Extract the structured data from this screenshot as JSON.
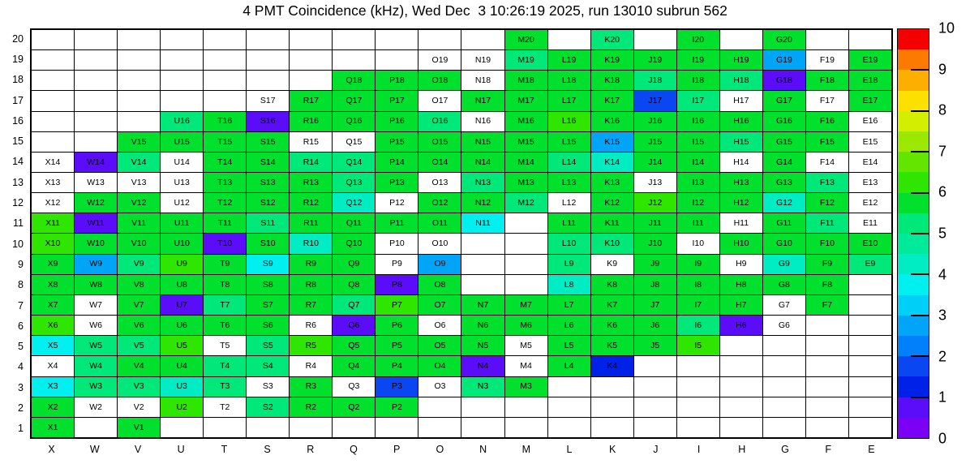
{
  "title": "4 PMT Coincidence (kHz), Wed Dec  3 10:26:19 2025, run 13010 subrun 562",
  "chart_data": {
    "type": "heatmap",
    "title": "4 PMT Coincidence (kHz), Wed Dec  3 10:26:19 2025, run 13010 subrun 562",
    "unit": "kHz",
    "x_columns": [
      "X",
      "W",
      "V",
      "U",
      "T",
      "S",
      "R",
      "Q",
      "P",
      "O",
      "N",
      "M",
      "L",
      "K",
      "J",
      "I",
      "H",
      "G",
      "F",
      "E"
    ],
    "y_rows": [
      "20",
      "19",
      "18",
      "17",
      "16",
      "15",
      "14",
      "13",
      "12",
      "11",
      "10",
      "9",
      "8",
      "7",
      "6",
      "5",
      "4",
      "3",
      "2",
      "1"
    ],
    "palette": {
      "w": "#ffffff",
      "g": "#00e02c",
      "lg": "#2ee600",
      "sg": "#00e87a",
      "tq": "#00edc4",
      "cy": "#00f0f0",
      "lb": "#00a5f7",
      "bl": "#0a46f2",
      "db": "#0022e8",
      "pu": "#5b0cf8"
    },
    "palette_value_estimates_khz": {
      "w": null,
      "pu": 0.75,
      "db": 1.25,
      "bl": 1.75,
      "lb": 2.75,
      "cy": 3.75,
      "tq": 4.25,
      "sg": 5.0,
      "g": 5.75,
      "lg": 6.25
    },
    "cells": [
      [
        "",
        "",
        "",
        "",
        "",
        "",
        "",
        "",
        "",
        "",
        "",
        "M20:g",
        "",
        "K20:sg",
        "",
        "I20:g",
        "",
        "G20:g",
        "",
        ""
      ],
      [
        "",
        "",
        "",
        "",
        "",
        "",
        "",
        "",
        "",
        "O19:w",
        "N19:w",
        "M19:sg",
        "L19:g",
        "K19:g",
        "J19:g",
        "I19:g",
        "H19:g",
        "G19:lb",
        "F19:w",
        "E19:g"
      ],
      [
        "",
        "",
        "",
        "",
        "",
        "",
        "",
        "Q18:g",
        "P18:g",
        "O18:g",
        "N18:w",
        "M18:g",
        "L18:g",
        "K18:g",
        "J18:sg",
        "I18:g",
        "H18:sg",
        "G18:pu",
        "F18:g",
        "E18:g"
      ],
      [
        "",
        "",
        "",
        "",
        "",
        "S17:w",
        "R17:g",
        "Q17:g",
        "P17:g",
        "O17:w",
        "N17:g",
        "M17:g",
        "L17:g",
        "K17:g",
        "J17:bl",
        "I17:sg",
        "H17:w",
        "G17:g",
        "F17:w",
        "E17:g"
      ],
      [
        "",
        "",
        "",
        "U16:sg",
        "T16:g",
        "S16:pu",
        "R16:g",
        "Q16:g",
        "P16:g",
        "O16:sg",
        "N16:w",
        "M16:g",
        "L16:lg",
        "K16:g",
        "J16:g",
        "I16:g",
        "H16:g",
        "G16:g",
        "F16:g",
        "E16:w"
      ],
      [
        "",
        "",
        "V15:g",
        "U15:g",
        "T15:g",
        "S15:g",
        "R15:w",
        "Q15:w",
        "P15:g",
        "O15:g",
        "N15:g",
        "M15:g",
        "L15:g",
        "K15:lb",
        "J15:g",
        "I15:g",
        "H15:sg",
        "G15:g",
        "F15:g",
        "E15:w"
      ],
      [
        "X14:w",
        "W14:pu",
        "V14:sg",
        "U14:w",
        "T14:g",
        "S14:g",
        "R14:sg",
        "Q14:sg",
        "P14:g",
        "O14:g",
        "N14:g",
        "M14:g",
        "L14:sg",
        "K14:tq",
        "J14:g",
        "I14:g",
        "H14:w",
        "G14:g",
        "F14:w",
        "E14:w"
      ],
      [
        "X13:w",
        "W13:w",
        "V13:w",
        "U13:w",
        "T13:g",
        "S13:g",
        "R13:g",
        "Q13:sg",
        "P13:g",
        "O13:w",
        "N13:sg",
        "M13:g",
        "L13:g",
        "K13:g",
        "J13:w",
        "I13:g",
        "H13:g",
        "G13:g",
        "F13:sg",
        "E13:w"
      ],
      [
        "X12:w",
        "W12:g",
        "V12:g",
        "U12:w",
        "T12:g",
        "S12:g",
        "R12:g",
        "Q12:tq",
        "P12:w",
        "O12:g",
        "N12:g",
        "M12:sg",
        "L12:w",
        "K12:g",
        "J12:lg",
        "I12:g",
        "H12:g",
        "G12:tq",
        "F12:g",
        "E12:w"
      ],
      [
        "X11:lg",
        "W11:pu",
        "V11:g",
        "U11:g",
        "T11:g",
        "S11:sg",
        "R11:g",
        "Q11:g",
        "P11:g",
        "O11:g",
        "N11:cy",
        "",
        "L11:g",
        "K11:g",
        "J11:g",
        "I11:g",
        "H11:w",
        "G11:g",
        "F11:sg",
        "E11:w"
      ],
      [
        "X10:lg",
        "W10:g",
        "V10:g",
        "U10:g",
        "T10:pu",
        "S10:g",
        "R10:tq",
        "Q10:g",
        "P10:w",
        "O10:w",
        "",
        "",
        "L10:sg",
        "K10:sg",
        "J10:g",
        "I10:w",
        "H10:g",
        "G10:g",
        "F10:g",
        "E10:g"
      ],
      [
        "X9:g",
        "W9:lb",
        "V9:sg",
        "U9:lg",
        "T9:g",
        "S9:cy",
        "R9:g",
        "Q9:g",
        "P9:w",
        "O9:lb",
        "",
        "",
        "L9:sg",
        "K9:w",
        "J9:g",
        "I9:g",
        "H9:w",
        "G9:tq",
        "F9:g",
        "E9:sg"
      ],
      [
        "X8:g",
        "W8:g",
        "V8:g",
        "U8:g",
        "T8:g",
        "S8:g",
        "R8:g",
        "Q8:g",
        "P8:pu",
        "O8:g",
        "",
        "",
        "L8:tq",
        "K8:g",
        "J8:g",
        "I8:g",
        "H8:g",
        "G8:g",
        "F8:g",
        ""
      ],
      [
        "X7:g",
        "W7:w",
        "V7:g",
        "U7:pu",
        "T7:sg",
        "S7:g",
        "R7:g",
        "Q7:sg",
        "P7:lg",
        "O7:g",
        "N7:g",
        "M7:g",
        "L7:g",
        "K7:g",
        "J7:g",
        "I7:g",
        "H7:g",
        "G7:w",
        "F7:g",
        ""
      ],
      [
        "X6:lg",
        "W6:w",
        "V6:g",
        "U6:g",
        "T6:g",
        "S6:g",
        "R6:w",
        "Q6:pu",
        "P6:g",
        "O6:w",
        "N6:g",
        "M6:g",
        "L6:g",
        "K6:g",
        "J6:g",
        "I6:sg",
        "H6:pu",
        "G6:w",
        "",
        ""
      ],
      [
        "X5:cy",
        "W5:sg",
        "V5:sg",
        "U5:lg",
        "T5:w",
        "S5:sg",
        "R5:lg",
        "Q5:g",
        "P5:g",
        "O5:g",
        "N5:g",
        "M5:w",
        "L5:g",
        "K5:g",
        "J5:g",
        "I5:lg",
        "",
        "",
        "",
        ""
      ],
      [
        "X4:w",
        "W4:sg",
        "V4:g",
        "U4:g",
        "T4:sg",
        "S4:sg",
        "R4:w",
        "Q4:g",
        "P4:g",
        "O4:g",
        "N4:pu",
        "M4:w",
        "L4:g",
        "K4:db",
        "",
        "",
        "",
        "",
        "",
        ""
      ],
      [
        "X3:cy",
        "W3:sg",
        "V3:sg",
        "U3:tq",
        "T3:sg",
        "S3:w",
        "R3:g",
        "Q3:w",
        "P3:bl",
        "O3:w",
        "N3:sg",
        "M3:g",
        "",
        "",
        "",
        "",
        "",
        "",
        "",
        ""
      ],
      [
        "X2:g",
        "W2:w",
        "V2:w",
        "U2:lg",
        "T2:w",
        "S2:sg",
        "R2:g",
        "Q2:g",
        "P2:g",
        "",
        "",
        "",
        "",
        "",
        "",
        "",
        "",
        "",
        "",
        ""
      ],
      [
        "X1:g",
        "",
        "V1:g",
        "",
        "",
        "",
        "",
        "",
        "",
        "",
        "",
        "",
        "",
        "",
        "",
        "",
        "",
        "",
        "",
        ""
      ]
    ],
    "colorbar": {
      "min": 0,
      "max": 10,
      "tick_labels": [
        "0",
        "1",
        "2",
        "3",
        "4",
        "5",
        "6",
        "7",
        "8",
        "9",
        "10"
      ],
      "bands_bottom_to_top": [
        "#7d00f6",
        "#5b0cf8",
        "#0022e8",
        "#0a46f2",
        "#0080fa",
        "#00a5f7",
        "#00d0f8",
        "#00f0f0",
        "#00edc4",
        "#00ea9c",
        "#00e87a",
        "#00e02c",
        "#2ee600",
        "#62e600",
        "#9ce800",
        "#d4ee00",
        "#fbe000",
        "#fdae00",
        "#fc7a00",
        "#f50000"
      ],
      "legend_position": "right",
      "grid": true
    }
  }
}
